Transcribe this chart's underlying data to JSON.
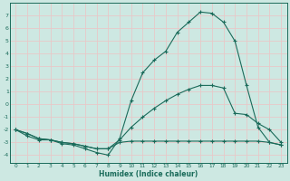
{
  "xlabel": "Humidex (Indice chaleur)",
  "xlim": [
    -0.5,
    23.5
  ],
  "ylim": [
    -4.6,
    8.0
  ],
  "xticks": [
    0,
    1,
    2,
    3,
    4,
    5,
    6,
    7,
    8,
    9,
    10,
    11,
    12,
    13,
    14,
    15,
    16,
    17,
    18,
    19,
    20,
    21,
    22,
    23
  ],
  "yticks": [
    -4,
    -3,
    -2,
    -1,
    0,
    1,
    2,
    3,
    4,
    5,
    6,
    7
  ],
  "bg_color": "#cde8e2",
  "line_color": "#1a6b5a",
  "grid_color_major": "#e8c8c8",
  "grid_color_minor": "#e8c8c8",
  "line1_y": [
    -2.0,
    -2.5,
    -2.8,
    -2.8,
    -3.1,
    -3.2,
    -3.5,
    -3.8,
    -4.0,
    -2.7,
    0.3,
    2.5,
    3.5,
    4.2,
    5.7,
    6.5,
    7.3,
    7.2,
    6.5,
    5.0,
    1.5,
    -1.8,
    -3.0,
    -3.2
  ],
  "line2_y": [
    -2.0,
    -2.3,
    -2.7,
    -2.8,
    -3.0,
    -3.1,
    -3.3,
    -3.5,
    -3.5,
    -2.8,
    -1.8,
    -1.0,
    -0.3,
    0.3,
    0.8,
    1.2,
    1.5,
    1.5,
    1.3,
    -0.7,
    -0.8,
    -1.5,
    -2.0,
    -3.0
  ],
  "line3_y": [
    -2.0,
    -2.3,
    -2.7,
    -2.8,
    -3.0,
    -3.1,
    -3.3,
    -3.5,
    -3.5,
    -3.0,
    -2.9,
    -2.9,
    -2.9,
    -2.9,
    -2.9,
    -2.9,
    -2.9,
    -2.9,
    -2.9,
    -2.9,
    -2.9,
    -2.9,
    -3.0,
    -3.2
  ]
}
